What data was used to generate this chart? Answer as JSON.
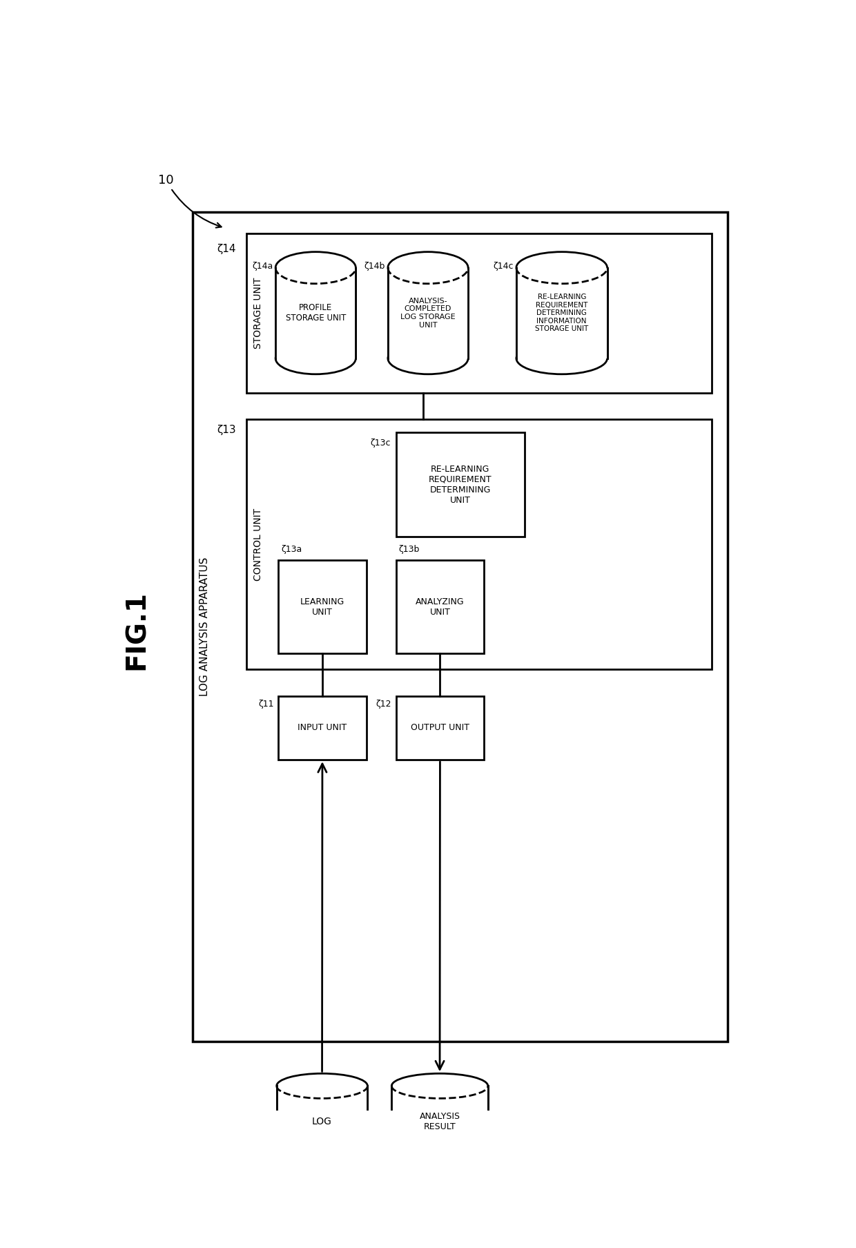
{
  "fig_label": "FIG.1",
  "main_box_label": "LOG ANALYSIS APPARATUS",
  "storage_unit_label": "STORAGE UNIT",
  "control_unit_label": "CONTROL UNIT",
  "bg_color": "#ffffff",
  "lw_outer": 2.5,
  "lw_inner": 2.0,
  "font_size_large": 13,
  "font_size_med": 11,
  "font_size_small": 9,
  "font_size_ref": 10
}
